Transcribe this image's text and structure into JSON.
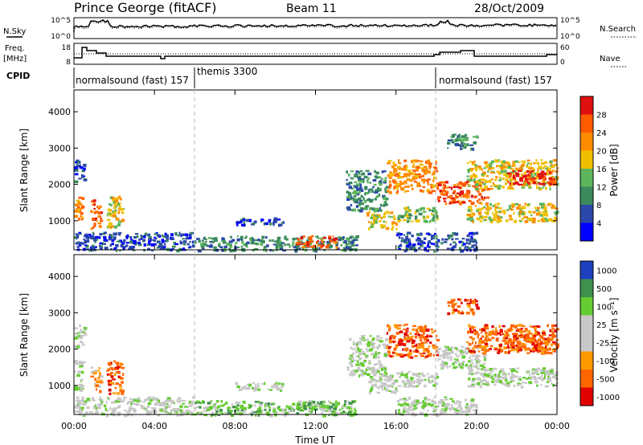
{
  "header": {
    "station": "Prince George (fitACF)",
    "beam": "Beam 11",
    "date": "28/Oct/2009"
  },
  "noise_panel": {
    "left_label": "N.Sky",
    "right_label": "N.Search",
    "left_ticks": [
      "10^5",
      "10^0"
    ],
    "right_ticks": [
      "10^5",
      "10^0"
    ]
  },
  "freq_panel": {
    "left_label_line1": "Freq.",
    "left_label_line2": "[MHz]",
    "right_label": "Nave",
    "left_ticks": [
      "18",
      "8"
    ],
    "right_ticks": [
      "60",
      "0"
    ]
  },
  "cpid": {
    "label": "CPID",
    "segments": [
      {
        "label": "normalsound (fast) 157",
        "start_hour": 0,
        "end_hour": 6
      },
      {
        "label": "themis 3300",
        "start_hour": 6,
        "end_hour": 18
      },
      {
        "label": "normalsound (fast) 157",
        "start_hour": 18,
        "end_hour": 24
      }
    ]
  },
  "colors": {
    "power": [
      "#0000ff",
      "#2b48a8",
      "#3a8a5c",
      "#5cb55c",
      "#f0c000",
      "#ff8c00",
      "#ff5a00",
      "#e01010"
    ],
    "velocity": [
      "#1e3fbf",
      "#3f8f4f",
      "#66cc33",
      "#c8c8c8",
      "#c8c8c8",
      "#ff9900",
      "#ff6600",
      "#e00000"
    ]
  },
  "chart_data": [
    {
      "type": "heatmap",
      "name": "power",
      "ylabel": "Slant Range [km]",
      "yticks": [
        1000,
        2000,
        3000,
        4000
      ],
      "ylim": [
        200,
        4600
      ],
      "xlim": [
        0,
        24
      ],
      "colorbar": {
        "label": "Power [dB]",
        "ticks": [
          "4",
          "8",
          "12",
          "16",
          "20",
          "24",
          "28"
        ]
      },
      "regions": [
        {
          "t0": 0.0,
          "t1": 0.4,
          "r0": 900,
          "r1": 1700,
          "level": 5
        },
        {
          "t0": 0.0,
          "t1": 0.5,
          "r0": 2100,
          "r1": 2700,
          "level": 1
        },
        {
          "t0": 0.8,
          "t1": 1.3,
          "r0": 800,
          "r1": 1600,
          "level": 6
        },
        {
          "t0": 1.6,
          "t1": 2.4,
          "r0": 800,
          "r1": 1700,
          "level": 4
        },
        {
          "t0": 0.0,
          "t1": 6.0,
          "r0": 200,
          "r1": 700,
          "level": 1
        },
        {
          "t0": 6.0,
          "t1": 14.0,
          "r0": 200,
          "r1": 600,
          "level": 2
        },
        {
          "t0": 8.0,
          "t1": 10.5,
          "r0": 900,
          "r1": 1100,
          "level": 1
        },
        {
          "t0": 11.0,
          "t1": 13.0,
          "r0": 300,
          "r1": 600,
          "level": 6
        },
        {
          "t0": 13.5,
          "t1": 15.5,
          "r0": 1300,
          "r1": 2400,
          "level": 2
        },
        {
          "t0": 14.5,
          "t1": 16.0,
          "r0": 800,
          "r1": 1300,
          "level": 4
        },
        {
          "t0": 15.5,
          "t1": 18.0,
          "r0": 1800,
          "r1": 2700,
          "level": 5
        },
        {
          "t0": 16.0,
          "t1": 18.0,
          "r0": 1000,
          "r1": 1400,
          "level": 3
        },
        {
          "t0": 18.0,
          "t1": 20.5,
          "r0": 1500,
          "r1": 2100,
          "level": 6
        },
        {
          "t0": 18.5,
          "t1": 20.0,
          "r0": 3000,
          "r1": 3400,
          "level": 2
        },
        {
          "t0": 19.5,
          "t1": 24.0,
          "r0": 1900,
          "r1": 2700,
          "level": 4
        },
        {
          "t0": 19.5,
          "t1": 24.0,
          "r0": 1000,
          "r1": 1500,
          "level": 4
        },
        {
          "t0": 21.5,
          "t1": 24.0,
          "r0": 2000,
          "r1": 2400,
          "level": 7
        },
        {
          "t0": 16.0,
          "t1": 20.0,
          "r0": 200,
          "r1": 700,
          "level": 1
        }
      ]
    },
    {
      "type": "heatmap",
      "name": "velocity",
      "ylabel": "Slant Range [km]",
      "yticks": [
        1000,
        2000,
        3000,
        4000
      ],
      "ylim": [
        200,
        4600
      ],
      "xlim": [
        0,
        24
      ],
      "xticks": [
        "00:00",
        "04:00",
        "08:00",
        "12:00",
        "16:00",
        "20:00",
        "00:00"
      ],
      "xlabel": "Time UT",
      "colorbar": {
        "label": "Velocity [m s⁻¹]",
        "ticks": [
          "1000",
          "500",
          "100",
          "25",
          "-25",
          "-100",
          "-500",
          "-1000"
        ]
      },
      "regions": [
        {
          "t0": 0.0,
          "t1": 0.4,
          "r0": 900,
          "r1": 1700,
          "level": 3
        },
        {
          "t0": 0.0,
          "t1": 0.5,
          "r0": 2100,
          "r1": 2700,
          "level": 3
        },
        {
          "t0": 0.8,
          "t1": 1.3,
          "r0": 800,
          "r1": 1600,
          "level": 5
        },
        {
          "t0": 1.6,
          "t1": 2.4,
          "r0": 800,
          "r1": 1700,
          "level": 6
        },
        {
          "t0": 0.0,
          "t1": 6.0,
          "r0": 200,
          "r1": 700,
          "level": 3
        },
        {
          "t0": 6.0,
          "t1": 14.0,
          "r0": 200,
          "r1": 600,
          "level": 2
        },
        {
          "t0": 8.0,
          "t1": 10.5,
          "r0": 900,
          "r1": 1100,
          "level": 3
        },
        {
          "t0": 11.0,
          "t1": 13.0,
          "r0": 300,
          "r1": 600,
          "level": 2
        },
        {
          "t0": 13.5,
          "t1": 15.5,
          "r0": 1300,
          "r1": 2400,
          "level": 3
        },
        {
          "t0": 14.5,
          "t1": 16.0,
          "r0": 800,
          "r1": 1300,
          "level": 3
        },
        {
          "t0": 15.5,
          "t1": 18.0,
          "r0": 1800,
          "r1": 2700,
          "level": 6
        },
        {
          "t0": 16.0,
          "t1": 18.0,
          "r0": 1000,
          "r1": 1400,
          "level": 3
        },
        {
          "t0": 18.0,
          "t1": 20.5,
          "r0": 1500,
          "r1": 2100,
          "level": 3
        },
        {
          "t0": 18.5,
          "t1": 20.0,
          "r0": 3000,
          "r1": 3400,
          "level": 6
        },
        {
          "t0": 19.5,
          "t1": 24.0,
          "r0": 1900,
          "r1": 2700,
          "level": 6
        },
        {
          "t0": 19.5,
          "t1": 24.0,
          "r0": 1000,
          "r1": 1500,
          "level": 3
        },
        {
          "t0": 21.5,
          "t1": 24.0,
          "r0": 2000,
          "r1": 2400,
          "level": 6
        },
        {
          "t0": 16.0,
          "t1": 20.0,
          "r0": 200,
          "r1": 700,
          "level": 3
        }
      ]
    }
  ]
}
